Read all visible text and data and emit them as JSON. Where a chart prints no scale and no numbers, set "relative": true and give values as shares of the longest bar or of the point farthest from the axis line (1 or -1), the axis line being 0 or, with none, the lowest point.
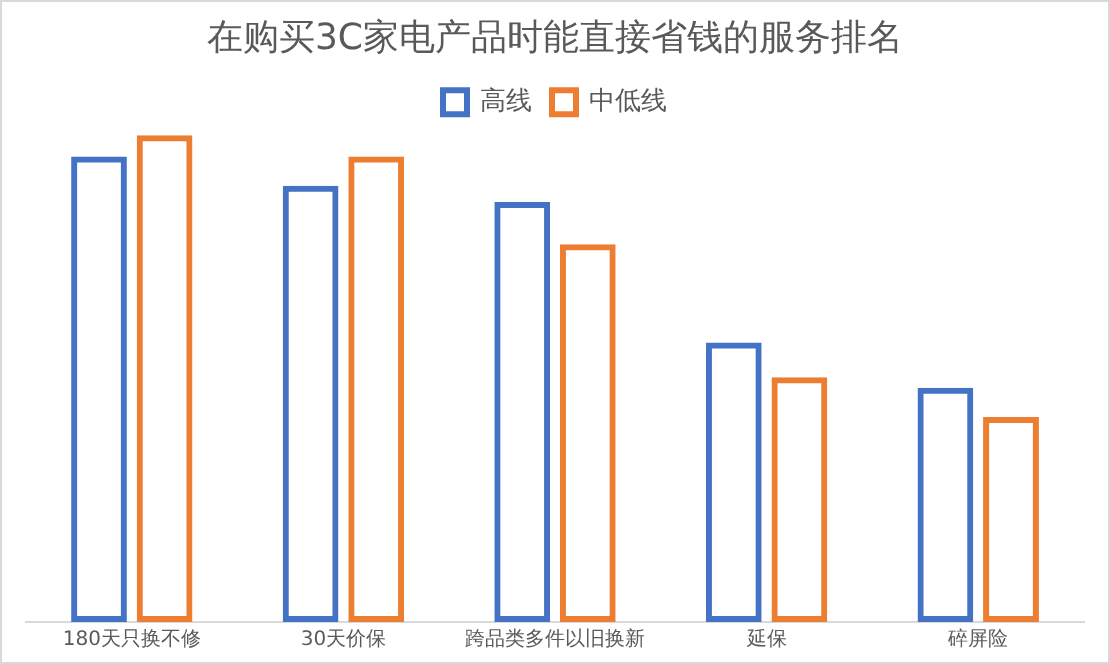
{
  "chart_data": {
    "type": "bar",
    "title": "在购买3C家电产品时能直接省钱的服务排名",
    "relative": true,
    "categories": [
      "180天只换不修",
      "30天价保",
      "跨品类多件以旧换新",
      "延保",
      "碎屏险"
    ],
    "legend": "top",
    "grid": false,
    "series": [
      {
        "name": "高线",
        "color": "#4472c4",
        "values": [
          0.956,
          0.896,
          0.863,
          0.574,
          0.481
        ]
      },
      {
        "name": "中低线",
        "color": "#ed7d31",
        "values": [
          1,
          0.956,
          0.776,
          0.503,
          0.421
        ]
      }
    ]
  }
}
